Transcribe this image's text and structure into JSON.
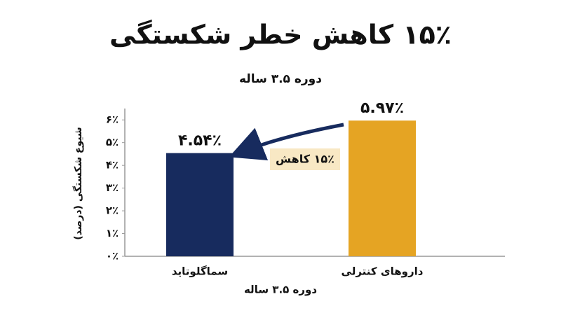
{
  "chart_data": {
    "type": "bar",
    "title": "۱۵٪ کاهش خطر شکستگی",
    "subtitle": "دوره ۳.۵ ساله",
    "y_label": "شیوع شکستگی (درصد)",
    "x_label": "دوره ۳.۵ ساله",
    "categories": [
      "سماگلوتاید",
      "داروهای کنترلی"
    ],
    "values": [
      4.54,
      5.97
    ],
    "value_labels": [
      "۴.۵۴٪",
      "۵.۹۷٪"
    ],
    "colors": [
      "#172b5e",
      "#e5a423"
    ],
    "annotation": "۱۵٪ کاهش",
    "ylim": [
      0,
      6.5
    ],
    "yticks": [
      {
        "value": 0,
        "label": "۰٪"
      },
      {
        "value": 1,
        "label": "۱٪"
      },
      {
        "value": 2,
        "label": "۲٪"
      },
      {
        "value": 3,
        "label": "۳٪"
      },
      {
        "value": 4,
        "label": "۴٪"
      },
      {
        "value": 5,
        "label": "۵٪"
      },
      {
        "value": 6,
        "label": "۶٪"
      }
    ],
    "grid": false
  }
}
